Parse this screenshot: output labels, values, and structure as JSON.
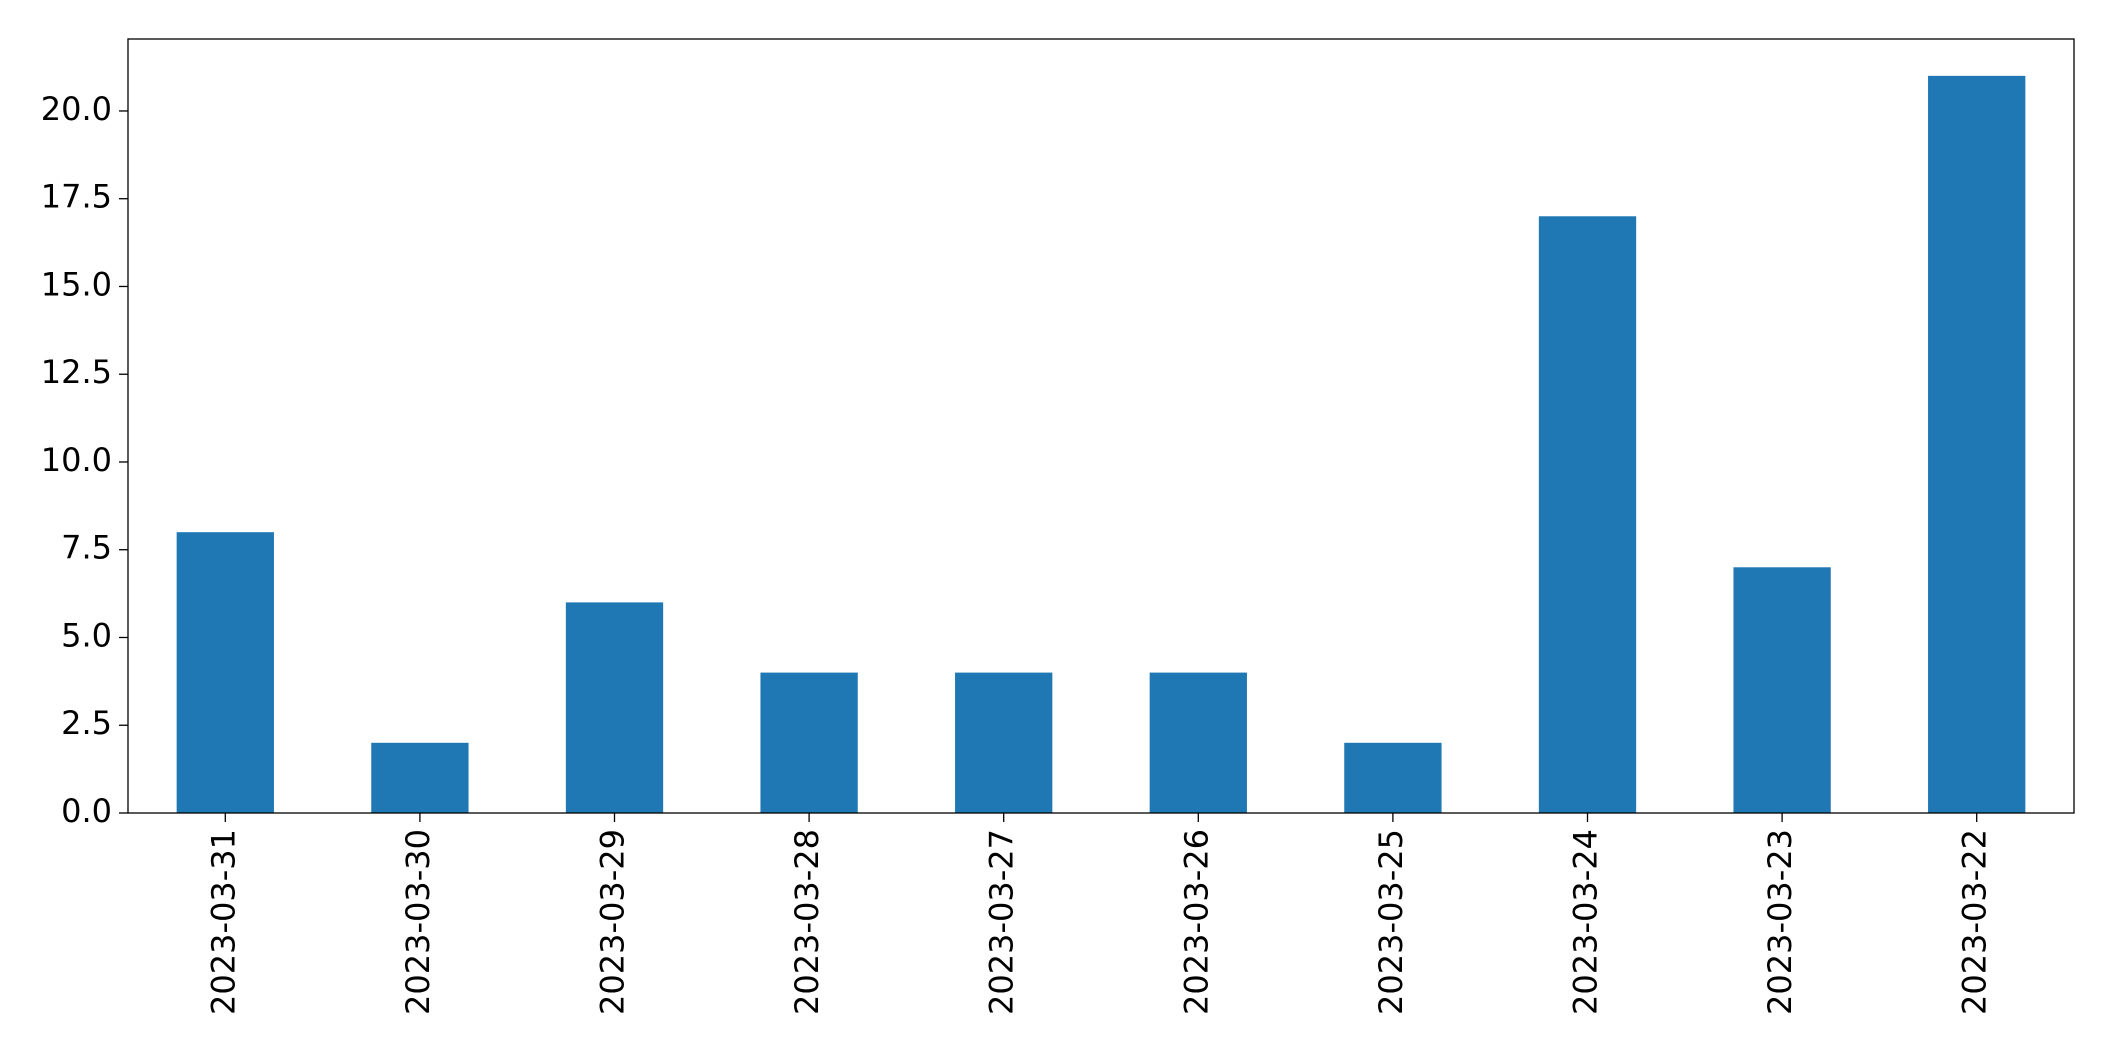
{
  "chart_data": {
    "type": "bar",
    "categories": [
      "2023-03-31",
      "2023-03-30",
      "2023-03-29",
      "2023-03-28",
      "2023-03-27",
      "2023-03-26",
      "2023-03-25",
      "2023-03-24",
      "2023-03-23",
      "2023-03-22"
    ],
    "values": [
      8,
      2,
      6,
      4,
      4,
      4,
      2,
      17,
      7,
      21
    ],
    "color": "#1f77b4",
    "ylim": [
      0,
      22.05
    ],
    "yticks": [
      {
        "value": 0,
        "label": "0.0"
      },
      2.5,
      {
        "value": 5,
        "label": "5.0"
      },
      7.5,
      {
        "value": 10,
        "label": "10.0"
      },
      12.5,
      {
        "value": 15,
        "label": "15.0"
      },
      17.5,
      {
        "value": 20,
        "label": "20.0"
      }
    ],
    "grid": false
  }
}
